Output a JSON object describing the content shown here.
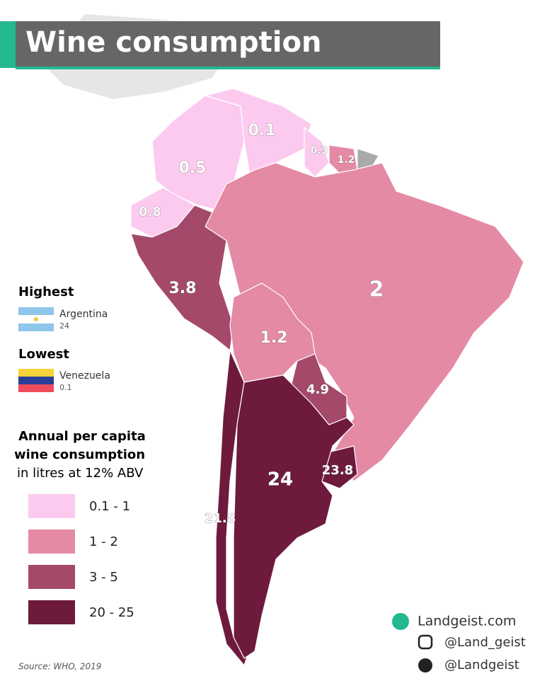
{
  "title": "Wine consumption",
  "highest": {
    "heading": "Highest",
    "country": "Argentina",
    "value": 24
  },
  "lowest": {
    "heading": "Lowest",
    "country": "Venezuela",
    "value": 0.1
  },
  "legend": {
    "title": [
      "Annual per capita",
      "wine consumption",
      "in litres at 12% ABV"
    ],
    "classes": [
      {
        "label": "0.1 - 1",
        "color": "#fccaef"
      },
      {
        "label": "1 - 2",
        "color": "#e48aa5"
      },
      {
        "label": "3 - 5",
        "color": "#a4496a"
      },
      {
        "label": "20 - 25",
        "color": "#6e1a3d"
      }
    ]
  },
  "regions": [
    {
      "value": 0.5,
      "color": "#fccaef"
    },
    {
      "value": 0.1,
      "color": "#fccaef"
    },
    {
      "value": 0.3,
      "color": "#fccaef"
    },
    {
      "value": 1.2,
      "color": "#e48aa5"
    },
    {
      "value": 0.8,
      "color": "#fccaef"
    },
    {
      "value": 3.8,
      "color": "#a4496a"
    },
    {
      "value": 2,
      "color": "#e48aa5"
    },
    {
      "value": 1.2,
      "color": "#e48aa5"
    },
    {
      "value": 4.9,
      "color": "#a4496a"
    },
    {
      "value": 23.8,
      "color": "#6e1a3d"
    },
    {
      "value": 21.8,
      "color": "#6e1a3d"
    },
    {
      "value": 24,
      "color": "#6e1a3d"
    }
  ],
  "source": "Source: WHO, 2019",
  "credits": [
    "Landgeist.com",
    "@Land_geist",
    "@Landgeist"
  ]
}
